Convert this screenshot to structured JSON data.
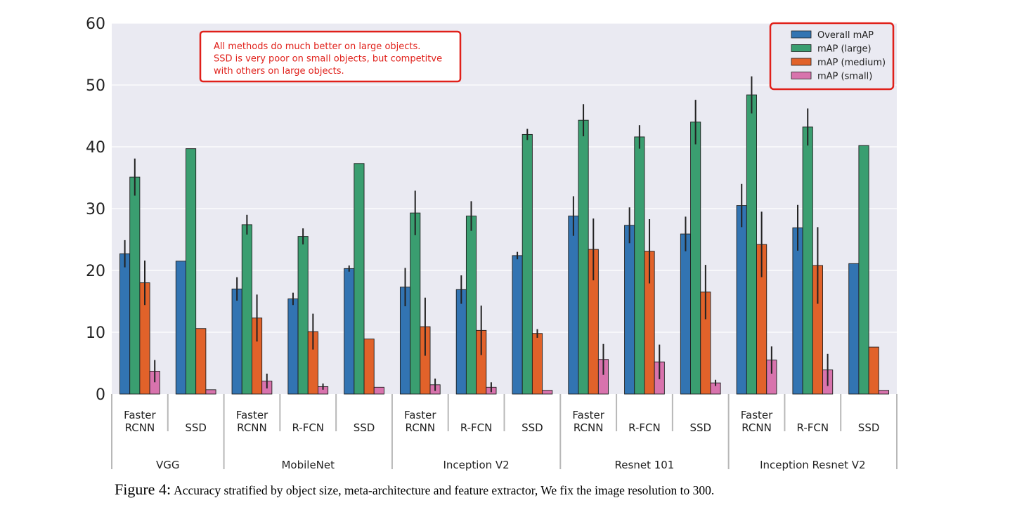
{
  "chart_data": {
    "type": "bar",
    "ylim": [
      0,
      60
    ],
    "yticks": [
      "0",
      "10",
      "20",
      "30",
      "40",
      "50",
      "60"
    ],
    "grid": true,
    "legend_position": "top-right",
    "colors": [
      "#3274b2",
      "#3a9e70",
      "#e1622a",
      "#d873ad"
    ],
    "series": [
      {
        "name": "Overall mAP"
      },
      {
        "name": "mAP (large)"
      },
      {
        "name": "mAP (medium)"
      },
      {
        "name": "mAP (small)"
      }
    ],
    "groups": [
      {
        "label": "VGG",
        "bars": [
          {
            "label": [
              "Faster",
              "RCNN"
            ],
            "values": [
              22.7,
              35.1,
              18.0,
              3.7
            ],
            "errors": [
              2.2,
              3.0,
              3.6,
              1.8
            ]
          },
          {
            "label": [
              "",
              "SSD"
            ],
            "values": [
              21.5,
              39.7,
              10.6,
              0.7
            ],
            "errors": [
              null,
              null,
              null,
              null
            ]
          }
        ]
      },
      {
        "label": "MobileNet",
        "bars": [
          {
            "label": [
              "Faster",
              "RCNN"
            ],
            "values": [
              17.0,
              27.4,
              12.3,
              2.1
            ],
            "errors": [
              1.9,
              1.6,
              3.8,
              1.2
            ]
          },
          {
            "label": [
              "",
              "R-FCN"
            ],
            "values": [
              15.4,
              25.5,
              10.1,
              1.2
            ],
            "errors": [
              1.0,
              1.3,
              2.9,
              0.5
            ]
          },
          {
            "label": [
              "",
              "SSD"
            ],
            "values": [
              20.3,
              37.3,
              8.9,
              1.1
            ],
            "errors": [
              0.5,
              null,
              null,
              null
            ]
          }
        ]
      },
      {
        "label": "Inception V2",
        "bars": [
          {
            "label": [
              "Faster",
              "RCNN"
            ],
            "values": [
              17.3,
              29.3,
              10.9,
              1.5
            ],
            "errors": [
              3.1,
              3.6,
              4.7,
              1.0
            ]
          },
          {
            "label": [
              "",
              "R-FCN"
            ],
            "values": [
              16.9,
              28.8,
              10.3,
              1.1
            ],
            "errors": [
              2.3,
              2.4,
              4.0,
              0.8
            ]
          },
          {
            "label": [
              "",
              "SSD"
            ],
            "values": [
              22.4,
              42.0,
              9.8,
              0.6
            ],
            "errors": [
              0.6,
              0.9,
              0.7,
              null
            ]
          }
        ]
      },
      {
        "label": "Resnet 101",
        "bars": [
          {
            "label": [
              "Faster",
              "RCNN"
            ],
            "values": [
              28.8,
              44.3,
              23.4,
              5.6
            ],
            "errors": [
              3.2,
              2.6,
              5.0,
              2.5
            ]
          },
          {
            "label": [
              "",
              "R-FCN"
            ],
            "values": [
              27.3,
              41.6,
              23.1,
              5.2
            ],
            "errors": [
              2.9,
              1.9,
              5.2,
              2.8
            ]
          },
          {
            "label": [
              "",
              "SSD"
            ],
            "values": [
              25.9,
              44.0,
              16.5,
              1.8
            ],
            "errors": [
              2.8,
              3.6,
              4.4,
              0.5
            ]
          }
        ]
      },
      {
        "label": "Inception Resnet V2",
        "bars": [
          {
            "label": [
              "Faster",
              "RCNN"
            ],
            "values": [
              30.5,
              48.4,
              24.2,
              5.5
            ],
            "errors": [
              3.5,
              3.0,
              5.3,
              2.2
            ]
          },
          {
            "label": [
              "",
              "R-FCN"
            ],
            "values": [
              26.9,
              43.2,
              20.8,
              3.9
            ],
            "errors": [
              3.7,
              3.0,
              6.2,
              2.6
            ]
          },
          {
            "label": [
              "",
              "SSD"
            ],
            "values": [
              21.1,
              40.2,
              7.6,
              0.6
            ],
            "errors": [
              null,
              null,
              null,
              null
            ]
          }
        ]
      }
    ],
    "annotations": [
      {
        "lines": [
          "All methods do much better on large objects.",
          "SSD is very poor on small objects, but competitve",
          "with others on large objects."
        ],
        "color": "#e0201a"
      }
    ],
    "caption": {
      "label": "Figure 4:",
      "text": "Accuracy stratified by object size, meta-architecture and feature extractor, We fix the image resolution to 300."
    }
  }
}
